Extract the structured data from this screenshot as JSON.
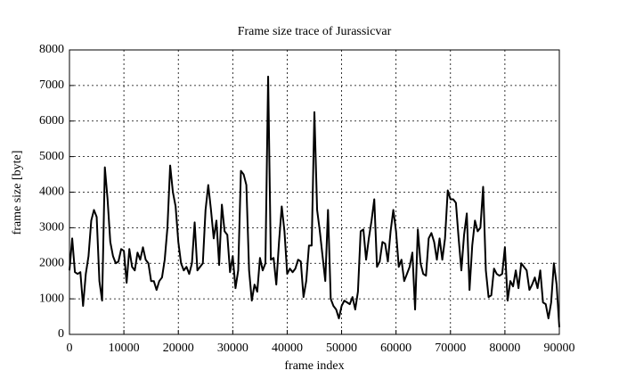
{
  "chart_data": {
    "type": "line",
    "title": "Frame size trace of Jurassicvar",
    "xlabel": "frame index",
    "ylabel": "frame size [byte]",
    "x": [
      0,
      500,
      1000,
      1500,
      2000,
      2500,
      3000,
      3500,
      4000,
      4500,
      5000,
      5500,
      6000,
      6500,
      7000,
      7500,
      8000,
      8500,
      9000,
      9500,
      10000,
      10500,
      11000,
      11500,
      12000,
      12500,
      13000,
      13500,
      14000,
      14500,
      15000,
      15500,
      16000,
      16500,
      17000,
      17500,
      18000,
      18500,
      19000,
      19500,
      20000,
      20500,
      21000,
      21500,
      22000,
      22500,
      23000,
      23500,
      24000,
      24500,
      25000,
      25500,
      26000,
      26500,
      27000,
      27500,
      28000,
      28500,
      29000,
      29500,
      30000,
      30500,
      31000,
      31500,
      32000,
      32500,
      33000,
      33500,
      34000,
      34500,
      35000,
      35500,
      36000,
      36500,
      37000,
      37500,
      38000,
      38500,
      39000,
      39500,
      40000,
      40500,
      41000,
      41500,
      42000,
      42500,
      43000,
      43500,
      44000,
      44500,
      45000,
      45500,
      46000,
      46500,
      47000,
      47500,
      48000,
      48500,
      49000,
      49500,
      50000,
      50500,
      51000,
      51500,
      52000,
      52500,
      53000,
      53500,
      54000,
      54500,
      55000,
      55500,
      56000,
      56500,
      57000,
      57500,
      58000,
      58500,
      59000,
      59500,
      60000,
      60500,
      61000,
      61500,
      62000,
      62500,
      63000,
      63500,
      64000,
      64500,
      65000,
      65500,
      66000,
      66500,
      67000,
      67500,
      68000,
      68500,
      69000,
      69500,
      70000,
      70500,
      71000,
      71500,
      72000,
      72500,
      73000,
      73500,
      74000,
      74500,
      75000,
      75500,
      76000,
      76500,
      77000,
      77500,
      78000,
      78500,
      79000,
      79500,
      80000,
      80500,
      81000,
      81500,
      82000,
      82500,
      83000,
      83500,
      84000,
      84500,
      85000,
      85500,
      86000,
      86500,
      87000,
      87500,
      88000,
      88500,
      89000,
      89500,
      90000
    ],
    "series": [
      {
        "color": "#000000",
        "values": [
          1800,
          2700,
          1750,
          1700,
          1750,
          800,
          1700,
          2200,
          3200,
          3500,
          3300,
          1500,
          950,
          4700,
          3800,
          2600,
          2200,
          2000,
          2050,
          2400,
          2350,
          1450,
          2400,
          1900,
          1800,
          2300,
          2100,
          2450,
          2100,
          2000,
          1500,
          1500,
          1250,
          1500,
          1600,
          2100,
          3000,
          4750,
          4000,
          3600,
          2600,
          2000,
          1800,
          1900,
          1700,
          2000,
          3150,
          1800,
          1900,
          2000,
          3500,
          4200,
          3500,
          2700,
          3200,
          1950,
          3650,
          2900,
          2800,
          1750,
          2200,
          1300,
          1800,
          4600,
          4500,
          4200,
          1800,
          950,
          1400,
          1200,
          2150,
          1800,
          2000,
          7250,
          2100,
          2150,
          1400,
          2600,
          3600,
          2900,
          1700,
          1850,
          1750,
          1850,
          2100,
          2050,
          1050,
          1500,
          2500,
          2500,
          6250,
          3500,
          2900,
          2200,
          1500,
          3500,
          1000,
          800,
          700,
          450,
          800,
          950,
          900,
          850,
          1050,
          700,
          1200,
          2900,
          2950,
          2100,
          2700,
          3200,
          3800,
          1900,
          2050,
          2600,
          2550,
          2050,
          2900,
          3500,
          2900,
          1900,
          2100,
          1500,
          1700,
          1900,
          2300,
          700,
          2950,
          2000,
          1700,
          1650,
          2700,
          2850,
          2600,
          2100,
          2700,
          2100,
          2700,
          4050,
          3800,
          3800,
          3700,
          2700,
          1800,
          2800,
          3400,
          1250,
          2500,
          3200,
          2900,
          3000,
          4150,
          1800,
          1050,
          1100,
          1850,
          1700,
          1650,
          1700,
          2450,
          950,
          1500,
          1350,
          1800,
          1300,
          2000,
          1900,
          1800,
          1250,
          1400,
          1600,
          1300,
          1800,
          900,
          850,
          450,
          900,
          2000,
          1400,
          200
        ]
      }
    ],
    "xlim": [
      0,
      90000
    ],
    "xticks": [
      0,
      10000,
      20000,
      30000,
      40000,
      50000,
      60000,
      70000,
      80000,
      90000
    ],
    "ylim": [
      0,
      8000
    ],
    "yticks": [
      0,
      1000,
      2000,
      3000,
      4000,
      5000,
      6000,
      7000,
      8000
    ],
    "grid": true
  }
}
